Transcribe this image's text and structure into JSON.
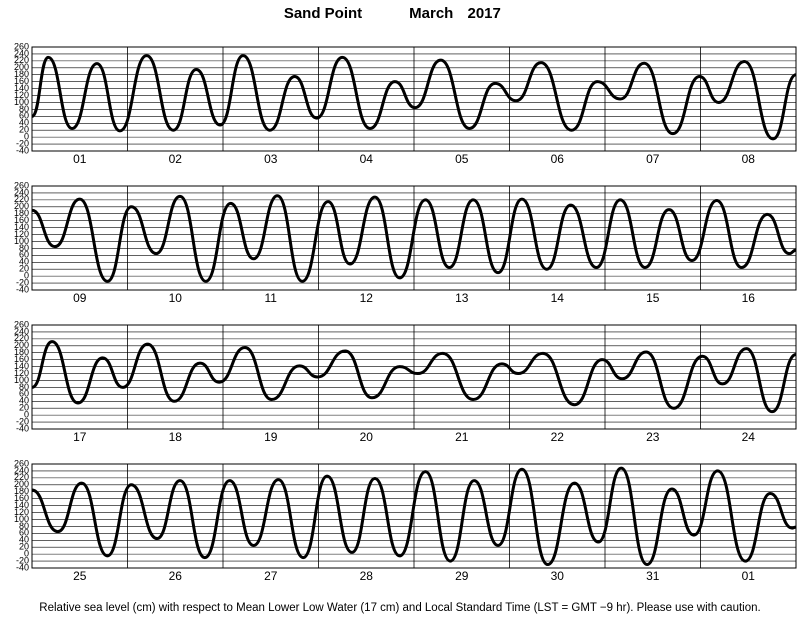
{
  "header": {
    "title": "Sand Point",
    "subtitle": "March 2017"
  },
  "footer": "Relative sea level (cm) with respect to Mean Lower Low Water (17 cm) and Local Standard Time (LST = GMT −9 hr). Please use with caution.",
  "chart_data": [
    {
      "type": "line",
      "categories": [
        "01",
        "02",
        "03",
        "04",
        "05",
        "06",
        "07",
        "08"
      ],
      "x": [
        0,
        0.17,
        0.42,
        0.68,
        0.92,
        1.2,
        1.48,
        1.72,
        1.97,
        2.21,
        2.49,
        2.75,
        2.98,
        3.25,
        3.54,
        3.8,
        4.01,
        4.28,
        4.58,
        4.85,
        5.07,
        5.33,
        5.65,
        5.92,
        6.16,
        6.41,
        6.71,
        6.99,
        7.19,
        7.46,
        7.76,
        8
      ],
      "values": [
        60,
        230,
        25,
        212,
        18,
        235,
        20,
        195,
        35,
        235,
        20,
        175,
        55,
        230,
        25,
        160,
        85,
        222,
        25,
        155,
        105,
        215,
        20,
        160,
        110,
        213,
        10,
        175,
        100,
        218,
        -5,
        180
      ],
      "color": "#000",
      "xlim": [
        0,
        8
      ],
      "xticks": [
        1,
        2,
        3,
        4,
        5,
        6,
        7
      ],
      "ylim": [
        -40,
        260
      ],
      "yticks": [
        260,
        240,
        220,
        200,
        180,
        160,
        140,
        120,
        100,
        80,
        60,
        40,
        20,
        0,
        -20,
        -40
      ],
      "grid": true
    },
    {
      "type": "line",
      "categories": [
        "09",
        "10",
        "11",
        "12",
        "13",
        "14",
        "15",
        "16"
      ],
      "x": [
        0,
        0.24,
        0.5,
        0.79,
        1.04,
        1.3,
        1.55,
        1.82,
        2.08,
        2.32,
        2.57,
        2.83,
        3.1,
        3.33,
        3.59,
        3.85,
        4.12,
        4.37,
        4.62,
        4.88,
        5.13,
        5.39,
        5.64,
        5.91,
        6.16,
        6.42,
        6.67,
        6.91,
        7.17,
        7.43,
        7.7,
        7.93,
        8
      ],
      "values": [
        190,
        85,
        222,
        -15,
        200,
        65,
        230,
        -15,
        210,
        50,
        232,
        -15,
        215,
        35,
        228,
        -5,
        220,
        25,
        220,
        10,
        222,
        20,
        205,
        25,
        220,
        25,
        192,
        45,
        218,
        25,
        178,
        65,
        75
      ],
      "color": "#000",
      "xlim": [
        0,
        8
      ],
      "xticks": [
        1,
        2,
        3,
        4,
        5,
        6,
        7
      ],
      "ylim": [
        -40,
        260
      ],
      "yticks": [
        260,
        240,
        220,
        200,
        180,
        160,
        140,
        120,
        100,
        80,
        60,
        40,
        20,
        0,
        -20,
        -40
      ],
      "grid": true
    },
    {
      "type": "line",
      "categories": [
        "17",
        "18",
        "19",
        "20",
        "21",
        "22",
        "23",
        "24"
      ],
      "x": [
        0,
        0.21,
        0.48,
        0.74,
        0.95,
        1.21,
        1.49,
        1.76,
        1.96,
        2.23,
        2.51,
        2.8,
        2.99,
        3.28,
        3.56,
        3.85,
        4.04,
        4.3,
        4.62,
        4.92,
        5.09,
        5.35,
        5.68,
        5.97,
        6.18,
        6.43,
        6.72,
        7.02,
        7.23,
        7.48,
        7.75,
        8
      ],
      "values": [
        80,
        212,
        35,
        165,
        80,
        205,
        40,
        150,
        95,
        195,
        45,
        142,
        110,
        185,
        50,
        140,
        120,
        178,
        45,
        148,
        120,
        178,
        30,
        160,
        105,
        182,
        20,
        170,
        90,
        192,
        10,
        175
      ],
      "color": "#000",
      "xlim": [
        0,
        8
      ],
      "xticks": [
        1,
        2,
        3,
        4,
        5,
        6,
        7
      ],
      "ylim": [
        -40,
        260
      ],
      "yticks": [
        260,
        240,
        220,
        200,
        180,
        160,
        140,
        120,
        100,
        80,
        60,
        40,
        20,
        0,
        -20,
        -40
      ],
      "grid": true
    },
    {
      "type": "line",
      "categories": [
        "25",
        "26",
        "27",
        "28",
        "29",
        "30",
        "31",
        "01"
      ],
      "x": [
        0,
        0.27,
        0.52,
        0.79,
        1.04,
        1.31,
        1.55,
        1.81,
        2.07,
        2.32,
        2.58,
        2.84,
        3.09,
        3.35,
        3.59,
        3.85,
        4.12,
        4.38,
        4.63,
        4.88,
        5.13,
        5.4,
        5.68,
        5.93,
        6.17,
        6.44,
        6.7,
        6.93,
        7.18,
        7.47,
        7.73,
        7.96,
        8
      ],
      "values": [
        185,
        65,
        205,
        -5,
        200,
        45,
        212,
        -10,
        212,
        25,
        215,
        -10,
        225,
        5,
        218,
        -5,
        238,
        -20,
        212,
        25,
        245,
        -30,
        205,
        35,
        248,
        -30,
        188,
        55,
        240,
        -20,
        175,
        75,
        78
      ],
      "color": "#000",
      "xlim": [
        0,
        8
      ],
      "xticks": [
        1,
        2,
        3,
        4,
        5,
        6,
        7
      ],
      "ylim": [
        -40,
        260
      ],
      "yticks": [
        260,
        240,
        220,
        200,
        180,
        160,
        140,
        120,
        100,
        80,
        60,
        40,
        20,
        0,
        -20,
        -40
      ],
      "grid": true
    }
  ]
}
